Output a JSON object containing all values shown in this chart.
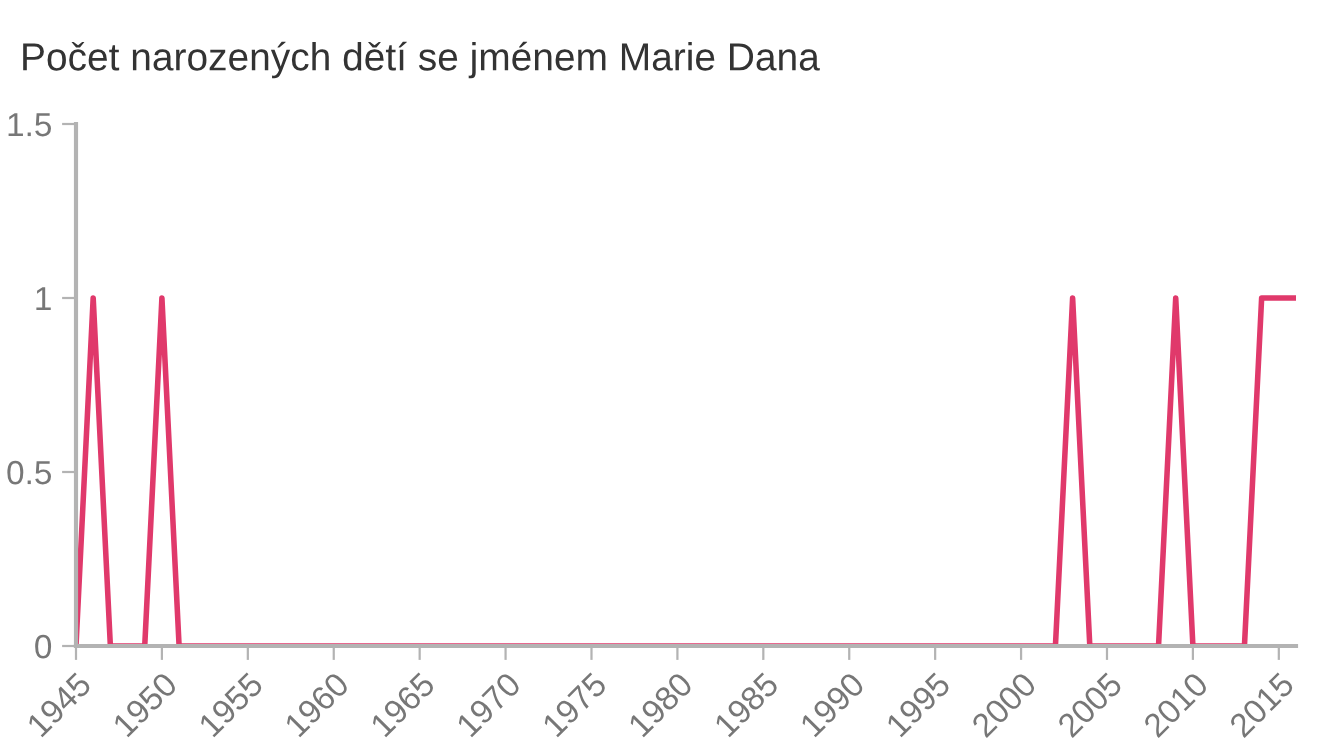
{
  "chart_data": {
    "type": "line",
    "title": "Počet narozených dětí se jménem Marie Dana",
    "x": [
      1945,
      1946,
      1947,
      1948,
      1949,
      1950,
      1951,
      1952,
      1953,
      1954,
      1955,
      1956,
      1957,
      1958,
      1959,
      1960,
      1961,
      1962,
      1963,
      1964,
      1965,
      1966,
      1967,
      1968,
      1969,
      1970,
      1971,
      1972,
      1973,
      1974,
      1975,
      1976,
      1977,
      1978,
      1979,
      1980,
      1981,
      1982,
      1983,
      1984,
      1985,
      1986,
      1987,
      1988,
      1989,
      1990,
      1991,
      1992,
      1993,
      1994,
      1995,
      1996,
      1997,
      1998,
      1999,
      2000,
      2001,
      2002,
      2003,
      2004,
      2005,
      2006,
      2007,
      2008,
      2009,
      2010,
      2011,
      2012,
      2013,
      2014,
      2015,
      2016
    ],
    "series": [
      {
        "color": "#e0396b",
        "values": [
          0,
          1,
          0,
          0,
          0,
          1,
          0,
          0,
          0,
          0,
          0,
          0,
          0,
          0,
          0,
          0,
          0,
          0,
          0,
          0,
          0,
          0,
          0,
          0,
          0,
          0,
          0,
          0,
          0,
          0,
          0,
          0,
          0,
          0,
          0,
          0,
          0,
          0,
          0,
          0,
          0,
          0,
          0,
          0,
          0,
          0,
          0,
          0,
          0,
          0,
          0,
          0,
          0,
          0,
          0,
          0,
          0,
          0,
          1,
          0,
          0,
          0,
          0,
          0,
          1,
          0,
          0,
          0,
          0,
          1,
          1,
          1
        ]
      }
    ],
    "xlim": [
      1945,
      2016
    ],
    "xticks": [
      1945,
      1950,
      1955,
      1960,
      1965,
      1970,
      1975,
      1980,
      1985,
      1990,
      1995,
      2000,
      2005,
      2010,
      2015
    ],
    "ylim": [
      0,
      1.5
    ],
    "yticks": [
      0,
      0.5,
      1,
      1.5
    ],
    "grid": false,
    "legend": false,
    "marker": "none",
    "line_style": "solid"
  }
}
